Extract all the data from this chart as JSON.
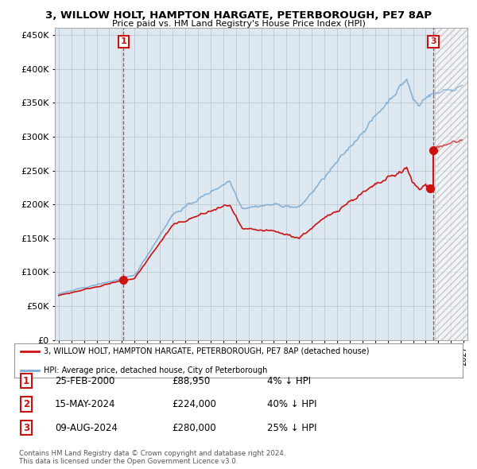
{
  "title": "3, WILLOW HOLT, HAMPTON HARGATE, PETERBOROUGH, PE7 8AP",
  "subtitle": "Price paid vs. HM Land Registry's House Price Index (HPI)",
  "legend_line1": "3, WILLOW HOLT, HAMPTON HARGATE, PETERBOROUGH, PE7 8AP (detached house)",
  "legend_line2": "HPI: Average price, detached house, City of Peterborough",
  "footer1": "Contains HM Land Registry data © Crown copyright and database right 2024.",
  "footer2": "This data is licensed under the Open Government Licence v3.0.",
  "transactions": [
    {
      "num": 1,
      "date": "25-FEB-2000",
      "price": "£88,950",
      "hpi": "4% ↓ HPI"
    },
    {
      "num": 2,
      "date": "15-MAY-2024",
      "price": "£224,000",
      "hpi": "40% ↓ HPI"
    },
    {
      "num": 3,
      "date": "09-AUG-2024",
      "price": "£280,000",
      "hpi": "25% ↓ HPI"
    }
  ],
  "sale_points": [
    {
      "year": 2000.13,
      "price": 88950,
      "label": "1"
    },
    {
      "year": 2024.37,
      "price": 224000,
      "label": "2"
    },
    {
      "year": 2024.6,
      "price": 280000,
      "label": "3"
    }
  ],
  "hpi_color": "#7dadd4",
  "price_color": "#cc1111",
  "bg_chart": "#dde8f0",
  "ylim": [
    0,
    460000
  ],
  "xlim_start": 1994.7,
  "xlim_end": 2027.3,
  "background_color": "#ffffff",
  "grid_color": "#c0ccd8"
}
